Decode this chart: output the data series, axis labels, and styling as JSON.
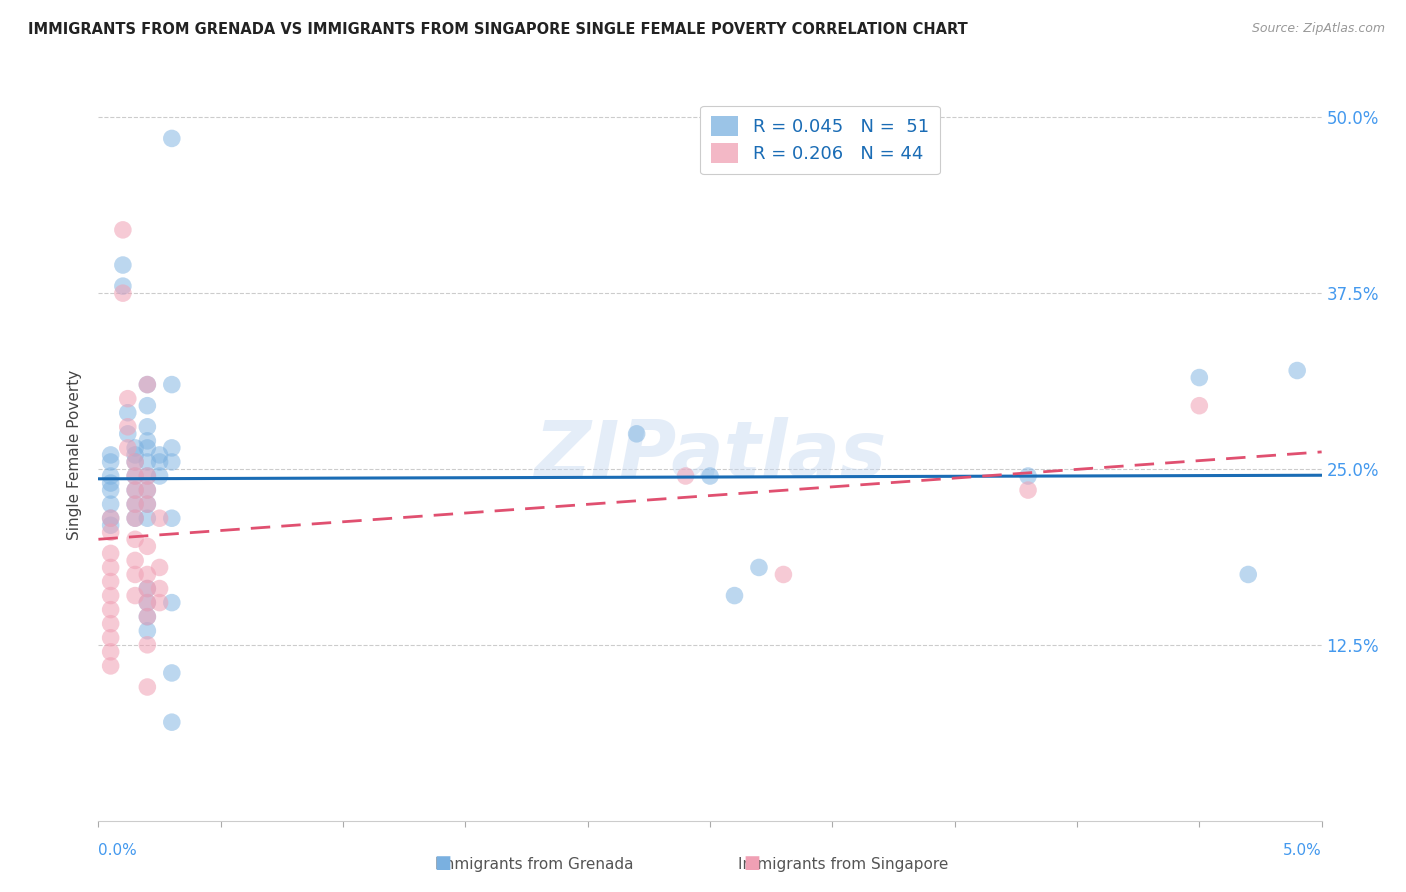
{
  "title": "IMMIGRANTS FROM GRENADA VS IMMIGRANTS FROM SINGAPORE SINGLE FEMALE POVERTY CORRELATION CHART",
  "source": "Source: ZipAtlas.com",
  "ylabel": "Single Female Poverty",
  "y_ticks": [
    0.0,
    0.125,
    0.25,
    0.375,
    0.5
  ],
  "y_tick_labels": [
    "",
    "12.5%",
    "25.0%",
    "37.5%",
    "50.0%"
  ],
  "x_range": [
    0.0,
    0.05
  ],
  "y_range": [
    0.0,
    0.52
  ],
  "grenada_color": "#7ab0e0",
  "singapore_color": "#f0a0b4",
  "watermark": "ZIPatlas",
  "grenada_points": [
    [
      0.0005,
      0.26
    ],
    [
      0.0005,
      0.255
    ],
    [
      0.0005,
      0.245
    ],
    [
      0.0005,
      0.24
    ],
    [
      0.0005,
      0.235
    ],
    [
      0.0005,
      0.225
    ],
    [
      0.0005,
      0.215
    ],
    [
      0.0005,
      0.21
    ],
    [
      0.001,
      0.395
    ],
    [
      0.001,
      0.38
    ],
    [
      0.0012,
      0.29
    ],
    [
      0.0012,
      0.275
    ],
    [
      0.0015,
      0.265
    ],
    [
      0.0015,
      0.26
    ],
    [
      0.0015,
      0.255
    ],
    [
      0.0015,
      0.245
    ],
    [
      0.0015,
      0.235
    ],
    [
      0.0015,
      0.225
    ],
    [
      0.0015,
      0.215
    ],
    [
      0.002,
      0.31
    ],
    [
      0.002,
      0.295
    ],
    [
      0.002,
      0.28
    ],
    [
      0.002,
      0.27
    ],
    [
      0.002,
      0.265
    ],
    [
      0.002,
      0.255
    ],
    [
      0.002,
      0.245
    ],
    [
      0.002,
      0.235
    ],
    [
      0.002,
      0.225
    ],
    [
      0.002,
      0.215
    ],
    [
      0.002,
      0.165
    ],
    [
      0.002,
      0.155
    ],
    [
      0.002,
      0.145
    ],
    [
      0.002,
      0.135
    ],
    [
      0.0025,
      0.26
    ],
    [
      0.0025,
      0.255
    ],
    [
      0.0025,
      0.245
    ],
    [
      0.003,
      0.485
    ],
    [
      0.003,
      0.31
    ],
    [
      0.003,
      0.265
    ],
    [
      0.003,
      0.255
    ],
    [
      0.003,
      0.215
    ],
    [
      0.003,
      0.155
    ],
    [
      0.003,
      0.105
    ],
    [
      0.003,
      0.07
    ],
    [
      0.022,
      0.275
    ],
    [
      0.025,
      0.245
    ],
    [
      0.026,
      0.16
    ],
    [
      0.027,
      0.18
    ],
    [
      0.038,
      0.245
    ],
    [
      0.045,
      0.315
    ],
    [
      0.047,
      0.175
    ],
    [
      0.049,
      0.32
    ]
  ],
  "singapore_points": [
    [
      0.0005,
      0.215
    ],
    [
      0.0005,
      0.205
    ],
    [
      0.0005,
      0.19
    ],
    [
      0.0005,
      0.18
    ],
    [
      0.0005,
      0.17
    ],
    [
      0.0005,
      0.16
    ],
    [
      0.0005,
      0.15
    ],
    [
      0.0005,
      0.14
    ],
    [
      0.0005,
      0.13
    ],
    [
      0.0005,
      0.12
    ],
    [
      0.0005,
      0.11
    ],
    [
      0.001,
      0.42
    ],
    [
      0.001,
      0.375
    ],
    [
      0.0012,
      0.3
    ],
    [
      0.0012,
      0.28
    ],
    [
      0.0012,
      0.265
    ],
    [
      0.0015,
      0.255
    ],
    [
      0.0015,
      0.245
    ],
    [
      0.0015,
      0.235
    ],
    [
      0.0015,
      0.225
    ],
    [
      0.0015,
      0.215
    ],
    [
      0.0015,
      0.2
    ],
    [
      0.0015,
      0.185
    ],
    [
      0.0015,
      0.175
    ],
    [
      0.0015,
      0.16
    ],
    [
      0.002,
      0.31
    ],
    [
      0.002,
      0.245
    ],
    [
      0.002,
      0.235
    ],
    [
      0.002,
      0.225
    ],
    [
      0.002,
      0.195
    ],
    [
      0.002,
      0.175
    ],
    [
      0.002,
      0.165
    ],
    [
      0.002,
      0.155
    ],
    [
      0.002,
      0.145
    ],
    [
      0.002,
      0.125
    ],
    [
      0.002,
      0.095
    ],
    [
      0.0025,
      0.215
    ],
    [
      0.0025,
      0.18
    ],
    [
      0.0025,
      0.165
    ],
    [
      0.0025,
      0.155
    ],
    [
      0.024,
      0.245
    ],
    [
      0.028,
      0.175
    ],
    [
      0.038,
      0.235
    ],
    [
      0.045,
      0.295
    ]
  ]
}
